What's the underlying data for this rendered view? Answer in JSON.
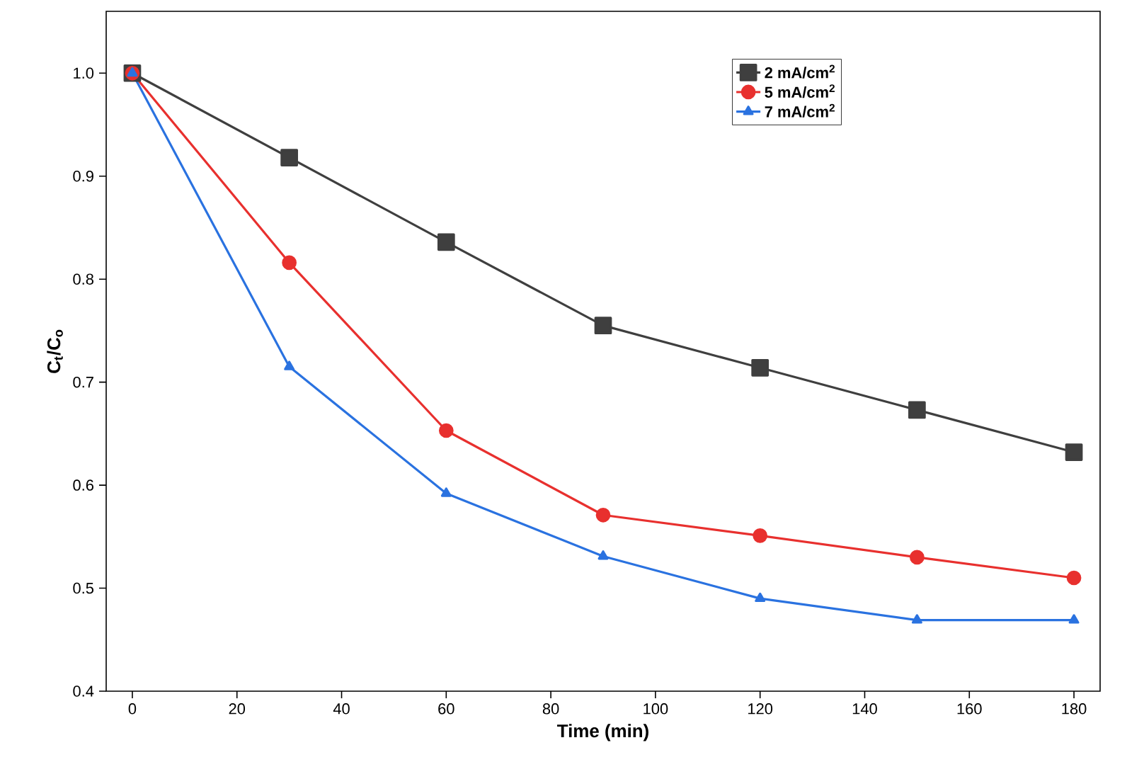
{
  "chart_data": {
    "type": "line",
    "xlabel": "Time (min)",
    "ylabel": "C$_{t}$/C$_{o}$",
    "xlim": [
      -5,
      185
    ],
    "ylim": [
      0.4,
      1.06
    ],
    "xticks": [
      0,
      20,
      40,
      60,
      80,
      100,
      120,
      140,
      160,
      180
    ],
    "yticks": [
      0.4,
      0.5,
      0.6,
      0.7,
      0.8,
      0.9,
      {
        "value": 1.0,
        "label": "1.0"
      }
    ],
    "x": [
      0,
      30,
      60,
      90,
      120,
      150,
      180
    ],
    "legend": "top right",
    "grid": false,
    "line_style": "solid",
    "series": [
      {
        "name": "2 mA/cm$^{2}$",
        "color": "#3f3f3f",
        "marker": "square",
        "values": [
          1.0,
          0.918,
          0.836,
          0.755,
          0.714,
          0.673,
          0.632
        ]
      },
      {
        "name": "5 mA/cm$^{2}$",
        "color": "#e8302e",
        "marker": "circle",
        "values": [
          1.0,
          0.816,
          0.653,
          0.571,
          0.551,
          0.53,
          0.51
        ]
      },
      {
        "name": "7 mA/cm$^{2}$",
        "color": "#2a72e0",
        "marker": "triangle",
        "values": [
          1.0,
          0.715,
          0.592,
          0.531,
          0.49,
          0.469,
          0.469
        ]
      }
    ]
  }
}
